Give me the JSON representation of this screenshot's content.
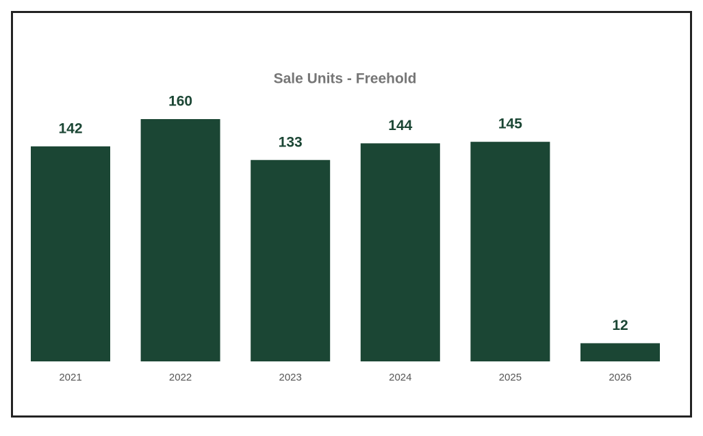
{
  "chart_data": {
    "type": "bar",
    "title": "Sale Units - Freehold",
    "categories": [
      "2021",
      "2022",
      "2023",
      "2024",
      "2025",
      "2026"
    ],
    "values": [
      142,
      160,
      133,
      144,
      145,
      12
    ],
    "color": "#1b4634"
  }
}
